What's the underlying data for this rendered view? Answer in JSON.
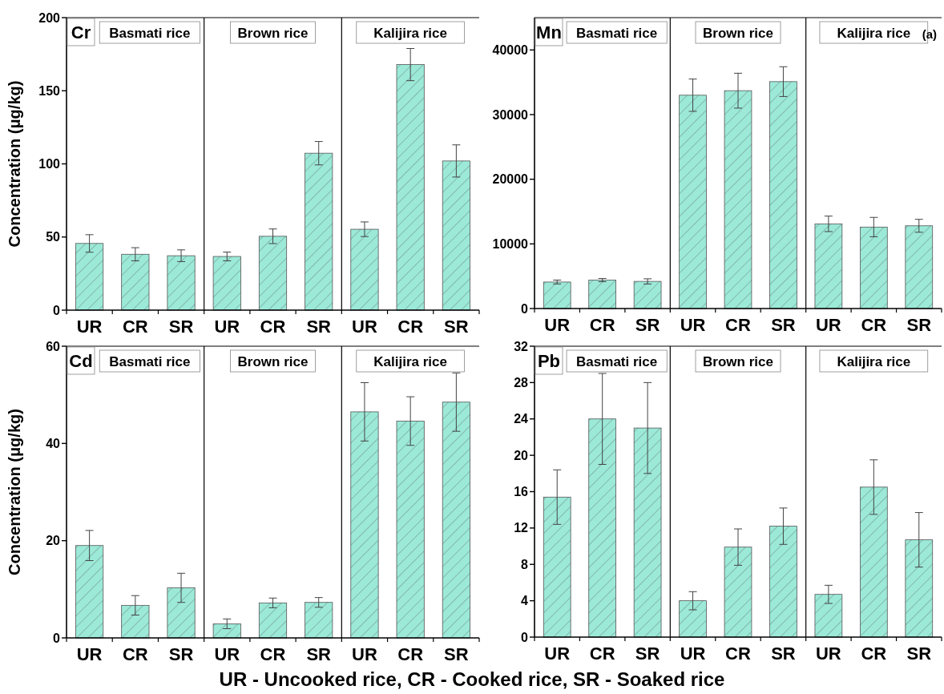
{
  "chart_data": [
    {
      "type": "bar",
      "title": "Cr",
      "ylabel": "Concentration (μg/kg)",
      "categories": [
        "UR",
        "CR",
        "SR",
        "UR",
        "CR",
        "SR",
        "UR",
        "CR",
        "SR"
      ],
      "values": [
        45.6,
        38.2,
        37.2,
        36.7,
        50.5,
        107.3,
        55.3,
        167.9,
        102
      ],
      "errors": [
        6,
        4.5,
        4,
        3,
        5,
        8,
        5,
        11,
        11
      ],
      "color": "#9ce9d8",
      "ylim": [
        0,
        200
      ],
      "yticks": [
        0,
        50,
        100,
        150,
        200
      ],
      "annotations": [
        "Basmati rice",
        "Brown rice",
        "Kalijira rice"
      ]
    },
    {
      "type": "bar",
      "title": "Mn",
      "categories": [
        "UR",
        "CR",
        "SR",
        "UR",
        "CR",
        "SR",
        "UR",
        "CR",
        "SR"
      ],
      "values": [
        4100,
        4400,
        4200,
        33000,
        33700,
        35100,
        13100,
        12600,
        12800
      ],
      "errors": [
        300,
        250,
        400,
        2500,
        2700,
        2300,
        1200,
        1500,
        1000
      ],
      "color": "#9ce9d8",
      "ylim": [
        0,
        45000
      ],
      "yticks": [
        0,
        10000,
        20000,
        30000,
        40000
      ],
      "annotations": [
        "Basmati rice",
        "Brown rice",
        "Kalijira rice",
        "(a)"
      ]
    },
    {
      "type": "bar",
      "title": "Cd",
      "ylabel": "Concentration (μg/kg)",
      "categories": [
        "UR",
        "CR",
        "SR",
        "UR",
        "CR",
        "SR",
        "UR",
        "CR",
        "SR"
      ],
      "values": [
        19,
        6.7,
        10.3,
        2.9,
        7.2,
        7.3,
        46.5,
        44.6,
        48.5
      ],
      "errors": [
        3.1,
        2,
        3,
        1,
        1,
        1,
        6,
        5,
        6
      ],
      "color": "#9ce9d8",
      "ylim": [
        0,
        60
      ],
      "yticks": [
        0,
        20,
        40,
        60
      ],
      "annotations": [
        "Basmati rice",
        "Brown rice",
        "Kalijira rice"
      ]
    },
    {
      "type": "bar",
      "title": "Pb",
      "categories": [
        "UR",
        "CR",
        "SR",
        "UR",
        "CR",
        "SR",
        "UR",
        "CR",
        "SR"
      ],
      "values": [
        15.4,
        24,
        23,
        4,
        9.9,
        12.2,
        4.7,
        16.5,
        10.7
      ],
      "errors": [
        3,
        5,
        5,
        1,
        2,
        2,
        1,
        3,
        3
      ],
      "color": "#9ce9d8",
      "ylim": [
        0,
        32
      ],
      "yticks": [
        0,
        4,
        8,
        12,
        16,
        20,
        24,
        28,
        32
      ],
      "annotations": [
        "Basmati rice",
        "Brown rice",
        "Kalijira rice",
        "UR - Uncooked rice, CR - Cooked rice, SR - Soaked rice"
      ]
    }
  ]
}
